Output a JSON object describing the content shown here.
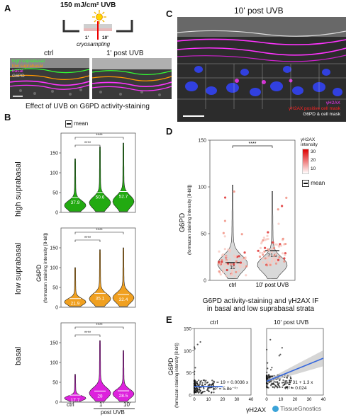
{
  "panel_a": {
    "letter": "A",
    "dose": "150 mJ/cm² UVB",
    "t1": "1'",
    "t10": "10'",
    "cryo": "cryosampling",
    "ctrl": "ctrl",
    "post": "1' post UVB",
    "legend": [
      "high suprabasal",
      "low suprabasal",
      "basal",
      "G6PD"
    ],
    "legend_colors": [
      "#33ff33",
      "#ff9900",
      "#ff33ff",
      "#dddddd"
    ]
  },
  "panel_b": {
    "letter": "B",
    "title": "Effect of UVB on G6PD activity-staining",
    "mean_label": "mean",
    "ylabel_main": "G6PD",
    "ylabel_sub": "(formazan staining intensity [8-bit])",
    "rows": [
      "high suprabasal",
      "low suprabasal",
      "basal"
    ],
    "xticks": [
      "ctrl",
      "1'",
      "10'"
    ],
    "xsub": "post UVB",
    "sig": "****"
  },
  "panel_c": {
    "letter": "C",
    "title": "10' post UVB",
    "legend": [
      "γH2AX",
      "γH2AX positive cell mask",
      "G6PD & cell mask"
    ],
    "legend_colors": [
      "#ff33ff",
      "#ff2222",
      "#ffffff"
    ]
  },
  "panel_d": {
    "letter": "D",
    "ylabel_main": "G6PD",
    "ylabel_sub": "(formazan staining intensity [8-bit])",
    "legend_title": "γH2AX intensity",
    "legend_ticks": [
      "30",
      "20",
      "10"
    ],
    "mean_label": "mean",
    "sig": "****",
    "title_line1": "G6PD activity-staining and γH2AX IF",
    "title_line2": "in basal and low suprabasal strata"
  },
  "panel_e": {
    "letter": "E",
    "ylabel_main": "G6PD",
    "ylabel_sub": "(formazan staining intensity [8-bit])",
    "xlabel": "γH2AX",
    "ctrl_title": "ctrl",
    "post_title": "10' post UVB",
    "eq_ctrl": "y = 19 + 0.0036 x",
    "r2_ctrl": "R² = 5.8e⁻⁰⁷",
    "eq_post": "y = 31 + 1.3 x",
    "r2_post": "R² = 0.024"
  },
  "footer": {
    "brand": "TissueGnostics"
  },
  "chart_data": [
    {
      "type": "violin",
      "panel": "B",
      "row": "high suprabasal",
      "categories": [
        "ctrl",
        "1'",
        "10'"
      ],
      "means": [
        37.9,
        50.6,
        52.7
      ],
      "ylim": [
        0,
        200
      ],
      "yticks": [
        0,
        50,
        100,
        150
      ],
      "colors": [
        "#22aa11",
        "#22aa11",
        "#22aa11"
      ]
    },
    {
      "type": "violin",
      "panel": "B",
      "row": "low suprabasal",
      "categories": [
        "ctrl",
        "1'",
        "10'"
      ],
      "means": [
        21.9,
        35.1,
        32.4
      ],
      "ylim": [
        0,
        200
      ],
      "yticks": [
        0,
        50,
        100,
        150
      ],
      "colors": [
        "#f0a020",
        "#f0a020",
        "#f0a020"
      ]
    },
    {
      "type": "violin",
      "panel": "B",
      "row": "basal",
      "categories": [
        "ctrl",
        "1'",
        "10'"
      ],
      "means": [
        17.7,
        28.0,
        28.5
      ],
      "ylim": [
        0,
        200
      ],
      "yticks": [
        0,
        50,
        100,
        150
      ],
      "colors": [
        "#dd22dd",
        "#dd22dd",
        "#dd22dd"
      ]
    },
    {
      "type": "violin",
      "panel": "D",
      "categories": [
        "ctrl",
        "10' post UVB"
      ],
      "means": [
        19,
        31.8
      ],
      "ylim": [
        0,
        150
      ],
      "yticks": [
        0,
        50,
        100,
        150
      ]
    },
    {
      "type": "scatter",
      "panel": "E",
      "facets": [
        "ctrl",
        "10' post UVB"
      ],
      "xlim": [
        0,
        40
      ],
      "ylim": [
        0,
        150
      ],
      "xticks": [
        0,
        10,
        20,
        30,
        40
      ],
      "yticks": [
        0,
        50,
        100,
        150
      ],
      "fits": [
        {
          "intercept": 19,
          "slope": 0.0036
        },
        {
          "intercept": 31,
          "slope": 1.3
        }
      ]
    }
  ]
}
